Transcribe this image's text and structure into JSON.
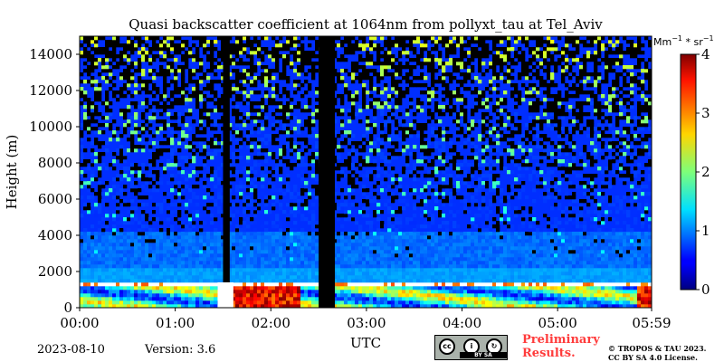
{
  "chart_data": {
    "type": "heatmap",
    "title": "Quasi backscatter coefficient at 1064nm from pollyxt_tau at Tel_Aviv",
    "xlabel": "UTC",
    "ylabel": "Height (m)",
    "x_ticks": [
      "00:00",
      "01:00",
      "02:00",
      "03:00",
      "04:00",
      "05:00",
      "05:59"
    ],
    "x_range_hours": [
      0,
      5.983
    ],
    "y_ticks": [
      0,
      2000,
      4000,
      6000,
      8000,
      10000,
      12000,
      14000
    ],
    "ylim": [
      0,
      15000
    ],
    "colorbar": {
      "label": "Mm^-1 * sr^-1",
      "ticks": [
        0,
        1,
        2,
        3,
        4
      ],
      "range": [
        0,
        4
      ],
      "colormap": "jet"
    },
    "features": {
      "boundary_layer_top_m": 1200,
      "cloud_layer_top_m": 1400,
      "no_data_intervals_hours": [
        [
          2.5,
          2.67
        ]
      ],
      "profile_gap_hours": [
        [
          1.5,
          1.57
        ]
      ],
      "high_backscatter_hours": [
        [
          1.6,
          2.3
        ],
        [
          5.85,
          5.983
        ]
      ]
    }
  },
  "footer": {
    "date": "2023-08-10",
    "version": "Version: 3.6",
    "preliminary": "Preliminary",
    "results": "Results.",
    "copyright_line1": "© TROPOS & TAU 2023.",
    "copyright_line2": "CC BY SA 4.0 License.",
    "license_badge": "cc-by-sa-badge"
  },
  "colors": {
    "colormap_low": "#00007f",
    "colormap_mid": "#00ff7f",
    "colormap_high": "#7f0000",
    "prelim_text": "#ff3b3b"
  }
}
